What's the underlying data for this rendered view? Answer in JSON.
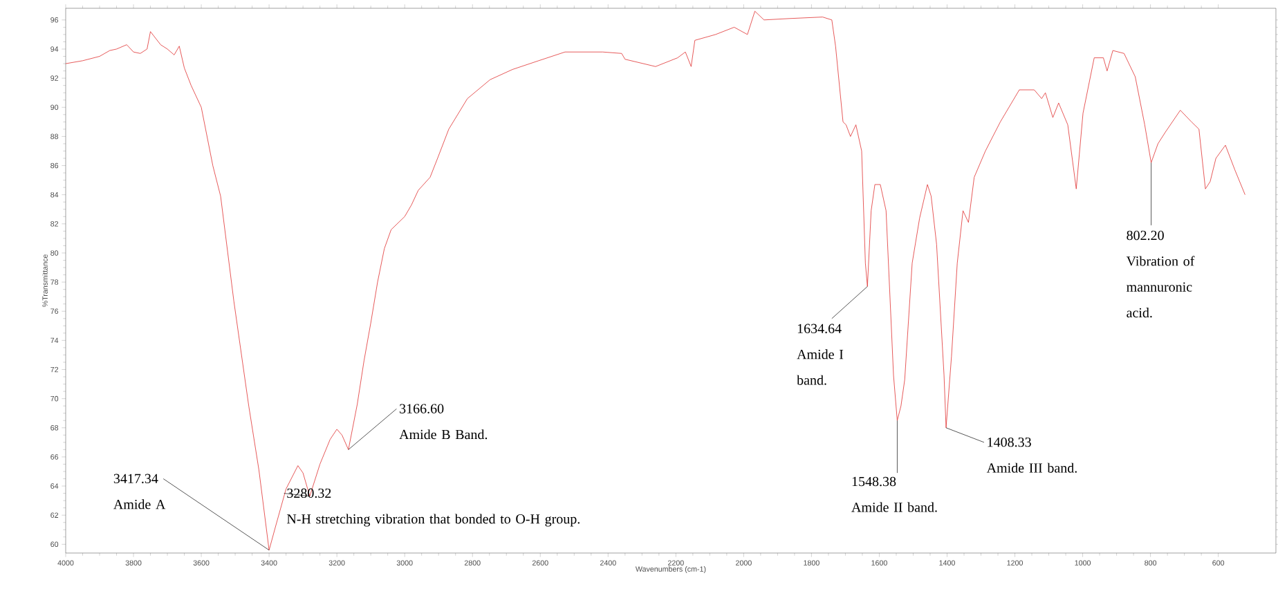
{
  "chart_data": {
    "type": "line",
    "xlabel": "Wavenumbers (cm-1)",
    "ylabel": "%Transmittance",
    "x": [
      4000,
      3950,
      3900,
      3870,
      3850,
      3820,
      3800,
      3780,
      3760,
      3750,
      3720,
      3700,
      3680,
      3665,
      3650,
      3630,
      3600,
      3566,
      3543,
      3504,
      3460,
      3430,
      3400,
      3380,
      3350,
      3315,
      3300,
      3280,
      3250,
      3220,
      3200,
      3185,
      3166,
      3140,
      3120,
      3100,
      3080,
      3060,
      3040,
      3000,
      2980,
      2960,
      2925,
      2903,
      2870,
      2815,
      2748,
      2682,
      2605,
      2527,
      2416,
      2360,
      2350,
      2260,
      2195,
      2172,
      2155,
      2144,
      2083,
      2028,
      1989,
      1967,
      1940,
      1862,
      1767,
      1740,
      1729,
      1707,
      1698,
      1685,
      1669,
      1652,
      1641,
      1635,
      1624,
      1613,
      1597,
      1580,
      1558,
      1547,
      1536,
      1525,
      1503,
      1481,
      1458,
      1447,
      1431,
      1409,
      1403,
      1387,
      1370,
      1353,
      1337,
      1320,
      1287,
      1243,
      1187,
      1143,
      1121,
      1110,
      1088,
      1071,
      1044,
      1019,
      999,
      966,
      939,
      928,
      911,
      878,
      845,
      817,
      798,
      778,
      756,
      712,
      679,
      657,
      638,
      624,
      607,
      579,
      551,
      521
    ],
    "series": [
      {
        "color": "#e03030",
        "values": [
          93.0,
          93.2,
          93.5,
          93.9,
          94.0,
          94.3,
          93.8,
          93.7,
          94.0,
          95.2,
          94.3,
          94.0,
          93.6,
          94.2,
          92.7,
          91.5,
          90.0,
          86.0,
          83.9,
          76.7,
          69.5,
          65.1,
          59.6,
          61.3,
          63.8,
          65.4,
          64.9,
          63.3,
          65.5,
          67.2,
          67.9,
          67.5,
          66.5,
          69.6,
          72.6,
          75.2,
          78.0,
          80.3,
          81.6,
          82.5,
          83.3,
          84.3,
          85.2,
          86.5,
          88.5,
          90.6,
          91.9,
          92.6,
          93.2,
          93.8,
          93.8,
          93.7,
          93.3,
          92.8,
          93.4,
          93.8,
          92.8,
          94.6,
          95.0,
          95.5,
          95.0,
          96.6,
          96.0,
          96.1,
          96.2,
          96.0,
          94.2,
          89.0,
          88.8,
          88.0,
          88.8,
          87.0,
          79.3,
          77.7,
          82.9,
          84.7,
          84.7,
          82.9,
          71.6,
          68.5,
          69.5,
          71.3,
          79.3,
          82.4,
          84.7,
          83.9,
          80.6,
          71.6,
          68.0,
          72.9,
          79.3,
          82.9,
          82.1,
          85.2,
          87.0,
          89.0,
          91.2,
          91.2,
          90.6,
          91.0,
          89.3,
          90.3,
          88.8,
          84.4,
          89.6,
          93.4,
          93.4,
          92.5,
          93.9,
          93.7,
          92.1,
          88.8,
          86.2,
          87.5,
          88.3,
          89.8,
          89.0,
          88.5,
          84.4,
          84.9,
          86.5,
          87.4,
          85.7,
          84.0
        ]
      }
    ],
    "xlim": [
      4000,
      430
    ],
    "ylim": [
      59.4,
      96.8
    ],
    "xticks": [
      4000,
      3800,
      3600,
      3400,
      3200,
      3000,
      2800,
      2600,
      2400,
      2200,
      2000,
      1800,
      1600,
      1400,
      1200,
      1000,
      800,
      600
    ],
    "yticks": [
      60,
      62,
      64,
      66,
      68,
      70,
      72,
      74,
      76,
      78,
      80,
      82,
      84,
      86,
      88,
      90,
      92,
      94,
      96
    ],
    "grid": false,
    "marker": "none",
    "line_style": "solid",
    "annotations": [
      {
        "text": "3417.34",
        "x": 3400,
        "y": 59.6
      },
      {
        "text": "3280.32",
        "x": 3280,
        "y": 63.3
      },
      {
        "text": "3166.60",
        "x": 3166,
        "y": 66.5
      },
      {
        "text": "1634.64",
        "x": 1635,
        "y": 77.7
      },
      {
        "text": "1548.38",
        "x": 1547,
        "y": 68.5
      },
      {
        "text": "1408.33",
        "x": 1403,
        "y": 68.0
      },
      {
        "text": "802.20",
        "x": 798,
        "y": 86.2
      },
      "Amide A",
      "N-H stretching vibration that bonded to O-H group.",
      "Amide B Band.",
      "Amide I band.",
      "Amide II band.",
      "Amide III band.",
      "Vibration of mannuronic acid."
    ]
  }
}
